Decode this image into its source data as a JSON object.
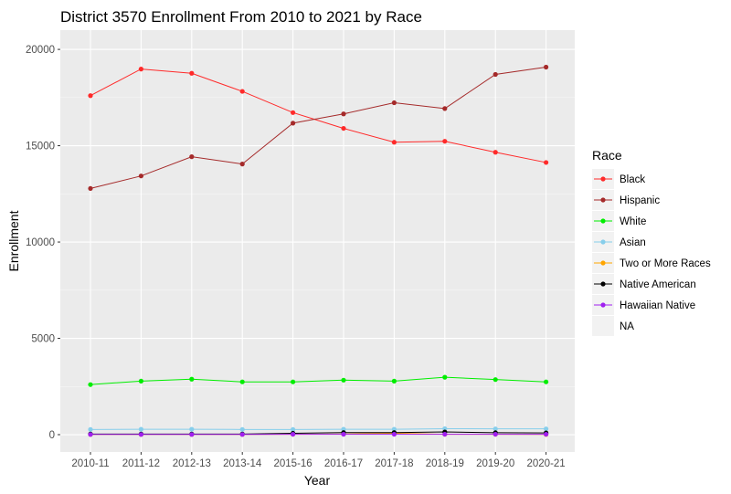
{
  "chart_data": {
    "type": "line",
    "title": "District 3570 Enrollment From 2010 to 2021 by Race",
    "xlabel": "Year",
    "ylabel": "Enrollment",
    "categories": [
      "2010-11",
      "2011-12",
      "2012-13",
      "2013-14",
      "2015-16",
      "2016-17",
      "2017-18",
      "2018-19",
      "2019-20",
      "2020-21"
    ],
    "ylim": [
      -900,
      21000
    ],
    "yticks": [
      0,
      5000,
      10000,
      15000,
      20000
    ],
    "grid": true,
    "legend": {
      "title": "Race",
      "position": "right",
      "entries": [
        "Black",
        "Hispanic",
        "White",
        "Asian",
        "Two or More Races",
        "Native American",
        "Hawaiian Native",
        "NA"
      ]
    },
    "series": [
      {
        "name": "Black",
        "color": "#ff2a2a",
        "values": [
          17600,
          18980,
          18760,
          17820,
          16720,
          15900,
          15180,
          15230,
          14660,
          14130
        ]
      },
      {
        "name": "Hispanic",
        "color": "#a52a2a",
        "values": [
          12780,
          13430,
          14430,
          14050,
          16170,
          16650,
          17230,
          16930,
          18700,
          19080
        ]
      },
      {
        "name": "White",
        "color": "#00ee00",
        "values": [
          2600,
          2780,
          2880,
          2740,
          2740,
          2830,
          2780,
          2980,
          2860,
          2740
        ]
      },
      {
        "name": "Asian",
        "color": "#87ceeb",
        "values": [
          270,
          280,
          280,
          270,
          270,
          280,
          280,
          310,
          300,
          300
        ]
      },
      {
        "name": "Two or More Races",
        "color": "#ffa500",
        "values": [
          10,
          10,
          10,
          10,
          20,
          30,
          80,
          20,
          20,
          10
        ]
      },
      {
        "name": "Native American",
        "color": "#000000",
        "values": [
          30,
          30,
          30,
          30,
          70,
          110,
          110,
          140,
          100,
          90
        ]
      },
      {
        "name": "Hawaiian Native",
        "color": "#a020f0",
        "values": [
          10,
          10,
          10,
          10,
          20,
          20,
          20,
          20,
          20,
          20
        ]
      }
    ]
  }
}
